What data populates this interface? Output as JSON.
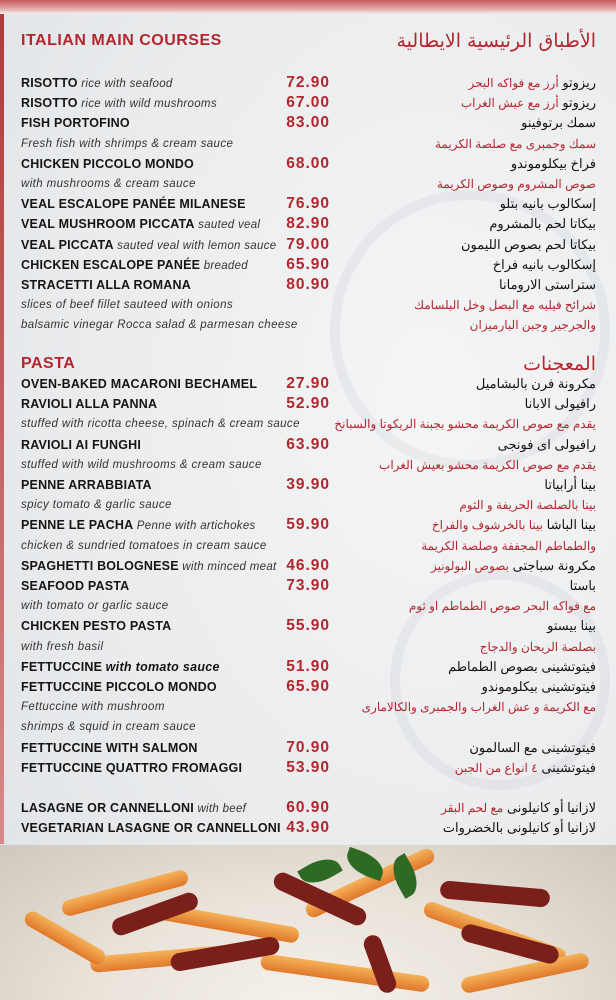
{
  "main_courses": {
    "title_en": "ITALIAN MAIN COURSES",
    "title_ar": "الأطباق الرئيسية الايطالية",
    "rows": [
      {
        "type": "item",
        "name": "RISOTTO",
        "desc": "rice with seafood",
        "price": "72.90",
        "ar": "ريزوتو",
        "ar_desc": "أرز مع فواكه البحر"
      },
      {
        "type": "item",
        "name": "RISOTTO",
        "desc": "rice with wild mushrooms",
        "price": "67.00",
        "ar": "ريزوتو",
        "ar_desc": "أرز مع عيش الغراب"
      },
      {
        "type": "item",
        "name": "FISH PORTOFINO",
        "price": "83.00",
        "ar": "سمك برتوفينو"
      },
      {
        "type": "desc",
        "en": "Fresh fish with shrimps & cream sauce",
        "ar": "سمك وجمبرى مع صلصة الكريمة"
      },
      {
        "type": "item",
        "name": "CHICKEN PICCOLO MONDO",
        "price": "68.00",
        "ar": "فراخ بيكلوموندو"
      },
      {
        "type": "desc",
        "en": "with mushrooms & cream sauce",
        "ar": "صوص المشروم وصوص الكريمة"
      },
      {
        "type": "item",
        "name": "VEAL ESCALOPE PANÉE MILANESE",
        "price": "76.90",
        "ar": "إسكالوب بانيه بتلو"
      },
      {
        "type": "item",
        "name": "VEAL MUSHROOM PICCATA",
        "desc": "sauted veal",
        "price": "82.90",
        "ar": "بيكاتا لحم بالمشروم"
      },
      {
        "type": "item",
        "name": "VEAL PICCATA",
        "desc": "sauted veal with lemon sauce",
        "price": "79.00",
        "ar": "بيكاتا لحم بصوص الليمون"
      },
      {
        "type": "item",
        "name": "CHICKEN ESCALOPE PANÉE",
        "desc": "breaded",
        "price": "65.90",
        "ar": "إسكالوب بانيه فراخ"
      },
      {
        "type": "item",
        "name": "STRACETTI ALLA ROMANA",
        "price": "80.90",
        "ar": "ستراستى الارومانا"
      },
      {
        "type": "desc",
        "en": "slices of beef fillet sauteed with onions",
        "ar": "شرائح فيليه مع البصل وخل البلسامك"
      },
      {
        "type": "desc",
        "en": "balsamic vinegar Rocca salad & parmesan cheese",
        "ar": "والجرجير وجبن البارميزان"
      }
    ]
  },
  "pasta": {
    "title_en": "PASTA",
    "title_ar": "المعجنات",
    "rows": [
      {
        "type": "item",
        "name": "OVEN-BAKED MACARONI BECHAMEL",
        "price": "27.90",
        "ar": "مكرونة فرن بالبشاميل"
      },
      {
        "type": "item",
        "name": "RAVIOLI ALLA PANNA",
        "price": "52.90",
        "ar": "رافيولى الابانا"
      },
      {
        "type": "desc",
        "en": "stuffed with ricotta cheese, spinach & cream sauce",
        "ar": "يقدم مع صوص الكريمة محشو بجبنة الريكوتا والسبانخ"
      },
      {
        "type": "item",
        "name": "RAVIOLI AI FUNGHI",
        "price": "63.90",
        "ar": "رافيولى اى فونجى"
      },
      {
        "type": "desc",
        "en": "stuffed with wild mushrooms & cream sauce",
        "ar": "يقدم مع صوص الكريمة محشو بعيش الغراب"
      },
      {
        "type": "item",
        "name": "PENNE ARRABBIATA",
        "price": "39.90",
        "ar": "بينا أرابياتا"
      },
      {
        "type": "desc",
        "en": "spicy tomato & garlic sauce",
        "ar": "بينا بالصلصة الحريفة و الثوم"
      },
      {
        "type": "item",
        "name": "PENNE LE PACHA",
        "desc": "Penne with artichokes",
        "price": "59.90",
        "ar": "بينا الباشا",
        "ar_desc": "بينا بالخرشوف والفراخ"
      },
      {
        "type": "desc",
        "en": "chicken & sundried tomatoes in cream sauce",
        "ar": "والطماطم المجففة وصلصة الكريمة"
      },
      {
        "type": "item",
        "name": "SPAGHETTI BOLOGNESE",
        "desc": "with minced meat",
        "price": "46.90",
        "ar": "مكرونة سباجتى",
        "ar_desc": "بصوص البولونيز"
      },
      {
        "type": "item",
        "name": "SEAFOOD PASTA",
        "price": "73.90",
        "ar": "باستا"
      },
      {
        "type": "desc",
        "en": "with tomato or garlic sauce",
        "ar": "مع فواكه البحر  صوص الطماطم او ثوم"
      },
      {
        "type": "item",
        "name": "CHICKEN PESTO PASTA",
        "price": "55.90",
        "ar": "بينا بيستو"
      },
      {
        "type": "desc",
        "en": "with fresh basil",
        "ar": "بصلصة الريحان والدجاج"
      },
      {
        "type": "item",
        "name": "FETTUCCINE",
        "desc": "with tomato sauce",
        "desc_bold": true,
        "price": "51.90",
        "ar": "فيتوتشينى بصوص الطماطم"
      },
      {
        "type": "item",
        "name": "FETTUCCINE PICCOLO MONDO",
        "price": "65.90",
        "ar": "فيتوتشينى بيكلوموندو"
      },
      {
        "type": "desc",
        "en": "Fettuccine with mushroom",
        "ar": "مع الكريمة و عش الغراب والجمبرى والكالامارى"
      },
      {
        "type": "desc",
        "en": " shrimps & squid in cream sauce",
        "ar": ""
      },
      {
        "type": "item",
        "name": "FETTUCCINE WITH SALMON",
        "price": "70.90",
        "ar": "فيتوتشينى مع السالمون"
      },
      {
        "type": "item",
        "name": "FETTUCCINE QUATTRO FROMAGGI",
        "price": "53.90",
        "ar": "فيتوتشينى",
        "ar_desc": "٤ انواع من الجبن"
      },
      {
        "type": "spacer"
      },
      {
        "type": "item",
        "name": "LASAGNE OR CANNELLONI",
        "desc": "with beef",
        "price": "60.90",
        "ar": "لازانيا  أو كانيلونى",
        "ar_desc": "مع لحم البقر"
      },
      {
        "type": "item",
        "name": "VEGETARIAN LASAGNE OR CANNELLONI",
        "price": "43.90",
        "ar": "لازانيا أو كانيلونى بالخضروات"
      }
    ]
  },
  "colors": {
    "accent": "#b3262e",
    "text": "#151515",
    "background": "#eceef0"
  }
}
